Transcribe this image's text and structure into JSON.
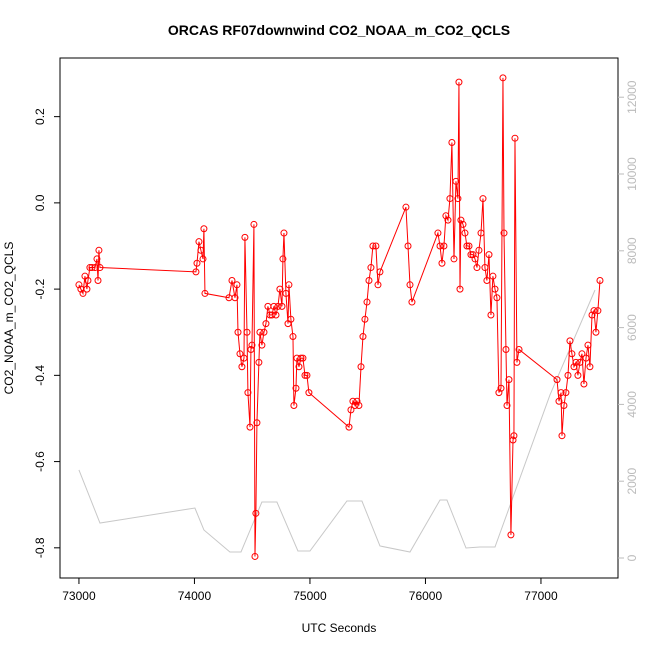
{
  "chart_data": {
    "type": "line",
    "title": "ORCAS RF07downwind CO2_NOAA_m_CO2_QCLS",
    "x_label": "UTC Seconds",
    "y_label": "CO2_NOAA_m_CO2_QCLS",
    "xlim": [
      72836,
      77667
    ],
    "ylim": [
      -0.87,
      0.336
    ],
    "y2lim": [
      -521,
      13021
    ],
    "xticks": [
      73000,
      74000,
      75000,
      76000,
      77000
    ],
    "yticks": [
      -0.8,
      -0.6,
      -0.4,
      -0.2,
      {
        "value": 0,
        "label": "0.0"
      },
      0.2
    ],
    "y2ticks": [
      0,
      2000,
      4000,
      6000,
      8000,
      10000,
      12000
    ],
    "series": [
      {
        "color": "#ff0000",
        "markers": true,
        "x": [
          73000,
          73017,
          73035,
          73052,
          73069,
          73078,
          73095,
          73113,
          73139,
          73156,
          73165,
          73173,
          73182,
          74013,
          74022,
          74039,
          74056,
          74074,
          74082,
          74091,
          74299,
          74325,
          74351,
          74368,
          74377,
          74394,
          74411,
          74429,
          74437,
          74455,
          74463,
          74481,
          74489,
          74498,
          74515,
          74524,
          74532,
          74541,
          74558,
          74567,
          74584,
          74602,
          74619,
          74636,
          74654,
          74671,
          74688,
          74706,
          74723,
          74740,
          74758,
          74766,
          74775,
          74792,
          74810,
          74818,
          74835,
          74853,
          74861,
          74879,
          74887,
          74905,
          74922,
          74939,
          74957,
          74974,
          74991,
          75338,
          75355,
          75372,
          75390,
          75407,
          75424,
          75442,
          75459,
          75476,
          75494,
          75511,
          75528,
          75545,
          75571,
          75589,
          75606,
          75831,
          75849,
          75866,
          75883,
          76108,
          76126,
          76143,
          76160,
          76177,
          76195,
          76212,
          76229,
          76247,
          76264,
          76281,
          76290,
          76299,
          76307,
          76325,
          76342,
          76359,
          76377,
          76394,
          76411,
          76429,
          76446,
          76463,
          76481,
          76498,
          76515,
          76532,
          76550,
          76567,
          76584,
          76602,
          76619,
          76636,
          76654,
          76671,
          76680,
          76697,
          76706,
          76723,
          76740,
          76758,
          76766,
          76775,
          76792,
          76810,
          77139,
          77156,
          77174,
          77182,
          77199,
          77216,
          77234,
          77251,
          77268,
          77286,
          77303,
          77320,
          77338,
          77355,
          77372,
          77390,
          77407,
          77424,
          77442,
          77459,
          77476,
          77493,
          77511
        ],
        "values": [
          -0.19,
          -0.2,
          -0.21,
          -0.17,
          -0.2,
          -0.18,
          -0.15,
          -0.15,
          -0.15,
          -0.13,
          -0.18,
          -0.11,
          -0.15,
          -0.16,
          -0.14,
          -0.09,
          -0.11,
          -0.13,
          -0.06,
          -0.21,
          -0.22,
          -0.18,
          -0.22,
          -0.19,
          -0.3,
          -0.35,
          -0.38,
          -0.36,
          -0.08,
          -0.3,
          -0.44,
          -0.52,
          -0.34,
          -0.33,
          -0.05,
          -0.82,
          -0.72,
          -0.51,
          -0.37,
          -0.3,
          -0.33,
          -0.3,
          -0.28,
          -0.24,
          -0.26,
          -0.26,
          -0.24,
          -0.26,
          -0.24,
          -0.2,
          -0.24,
          -0.13,
          -0.07,
          -0.21,
          -0.28,
          -0.19,
          -0.27,
          -0.31,
          -0.47,
          -0.43,
          -0.36,
          -0.38,
          -0.36,
          -0.36,
          -0.4,
          -0.4,
          -0.44,
          -0.52,
          -0.48,
          -0.46,
          -0.47,
          -0.46,
          -0.47,
          -0.38,
          -0.31,
          -0.27,
          -0.23,
          -0.18,
          -0.15,
          -0.1,
          -0.1,
          -0.19,
          -0.16,
          -0.01,
          -0.1,
          -0.19,
          -0.23,
          -0.07,
          -0.1,
          -0.14,
          -0.1,
          -0.03,
          -0.04,
          0.01,
          0.14,
          -0.13,
          0.05,
          0.01,
          0.28,
          -0.2,
          -0.04,
          -0.05,
          -0.07,
          -0.1,
          -0.1,
          -0.12,
          -0.12,
          -0.13,
          -0.15,
          -0.11,
          -0.07,
          0.01,
          -0.15,
          -0.18,
          -0.12,
          -0.26,
          -0.17,
          -0.2,
          -0.22,
          -0.44,
          -0.43,
          0.29,
          -0.07,
          -0.34,
          -0.47,
          -0.41,
          -0.77,
          -0.55,
          -0.54,
          0.15,
          -0.37,
          -0.34,
          -0.41,
          -0.46,
          -0.44,
          -0.54,
          -0.47,
          -0.44,
          -0.4,
          -0.32,
          -0.35,
          -0.38,
          -0.37,
          -0.4,
          -0.37,
          -0.35,
          -0.42,
          -0.36,
          -0.33,
          -0.38,
          -0.26,
          -0.25,
          -0.3,
          -0.25,
          -0.18
        ]
      },
      {
        "color": "#c8c8c8",
        "axis": "y2",
        "markers": false,
        "x": [
          73000,
          73182,
          74004,
          74082,
          74307,
          74403,
          74584,
          74714,
          74896,
          75000,
          75320,
          75450,
          75606,
          75866,
          76126,
          76186,
          76351,
          76472,
          76602,
          77078,
          77468
        ],
        "values": [
          2292,
          911,
          1302,
          729,
          156,
          156,
          1458,
          1458,
          182,
          182,
          1484,
          1484,
          313,
          156,
          1510,
          1510,
          260,
          286,
          286,
          4245,
          6979
        ]
      }
    ]
  }
}
